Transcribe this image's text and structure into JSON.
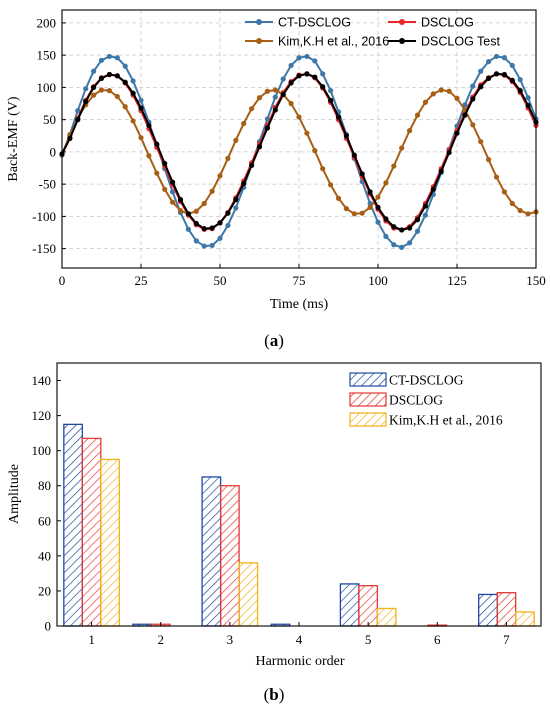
{
  "chart_data": [
    {
      "type": "line",
      "panel_label": "(a)",
      "panel_label_parts": {
        "open": "(",
        "letter": "a",
        "close": ")"
      },
      "xlabel": "Time (ms)",
      "ylabel": "Back-EMF (V)",
      "xlim": [
        0,
        150
      ],
      "ylim": [
        -180,
        220
      ],
      "xticks": [
        "0",
        "25",
        "50",
        "75",
        "100",
        "125",
        "150"
      ],
      "yticks": [
        "-150",
        "-100",
        "-50",
        "0",
        "50",
        "100",
        "150",
        "200"
      ],
      "grid": true,
      "legend_placement": "top (two columns)",
      "x": [
        0,
        2.5,
        5,
        7.5,
        10,
        12.5,
        15,
        17.5,
        20,
        22.5,
        25,
        27.5,
        30,
        32.5,
        35,
        37.5,
        40,
        42.5,
        45,
        47.5,
        50,
        52.5,
        55,
        57.5,
        60,
        62.5,
        65,
        67.5,
        70,
        72.5,
        75,
        77.5,
        80,
        82.5,
        85,
        87.5,
        90,
        92.5,
        95,
        97.5,
        100,
        102.5,
        105,
        107.5,
        110,
        112.5,
        115,
        117.5,
        120,
        122.5,
        125,
        127.5,
        130,
        132.5,
        135,
        137.5,
        140,
        142.5,
        145,
        147.5,
        150
      ],
      "series": [
        {
          "name": "CT-DSCLOG",
          "color": "#3d78a8",
          "values": [
            -5,
            27,
            64,
            98,
            125,
            142,
            148,
            146,
            133,
            110,
            80,
            46,
            10,
            -26,
            -62,
            -94,
            -120,
            -138,
            -146,
            -145,
            -134,
            -114,
            -87,
            -55,
            -20,
            16,
            51,
            85,
            113,
            134,
            146,
            148,
            141,
            121,
            95,
            62,
            27,
            -10,
            -46,
            -80,
            -109,
            -131,
            -144,
            -148,
            -141,
            -123,
            -98,
            -66,
            -32,
            4,
            40,
            73,
            102,
            125,
            140,
            148,
            146,
            134,
            112,
            84,
            51
          ]
        },
        {
          "name": "DSCLOG",
          "color": "#e8262b",
          "values": [
            -4,
            22,
            52,
            80,
            101,
            115,
            120,
            118,
            107,
            88,
            64,
            36,
            7,
            -22,
            -51,
            -77,
            -98,
            -113,
            -120,
            -119,
            -110,
            -94,
            -71,
            -45,
            -17,
            12,
            41,
            69,
            92,
            109,
            119,
            121,
            115,
            99,
            77,
            50,
            21,
            -8,
            -38,
            -65,
            -89,
            -107,
            -118,
            -121,
            -116,
            -102,
            -80,
            -54,
            -26,
            3,
            33,
            61,
            85,
            104,
            115,
            121,
            119,
            109,
            92,
            68,
            41
          ]
        },
        {
          "name": "Kim,K.H et al., 2016",
          "color": "#a65f14",
          "values": [
            -4,
            26,
            52,
            73,
            88,
            96,
            95,
            86,
            70,
            48,
            22,
            -6,
            -33,
            -58,
            -78,
            -91,
            -96,
            -92,
            -80,
            -61,
            -37,
            -10,
            18,
            44,
            67,
            84,
            94,
            96,
            89,
            75,
            54,
            29,
            2,
            -26,
            -51,
            -72,
            -88,
            -96,
            -95,
            -86,
            -70,
            -48,
            -22,
            6,
            33,
            57,
            77,
            90,
            96,
            94,
            83,
            65,
            42,
            16,
            -12,
            -39,
            -62,
            -80,
            -91,
            -96,
            -93
          ]
        },
        {
          "name": "DSCLOG Test",
          "color": "#000000",
          "values": [
            -3,
            21,
            50,
            78,
            100,
            114,
            120,
            118,
            108,
            91,
            68,
            41,
            12,
            -18,
            -47,
            -74,
            -96,
            -111,
            -119,
            -118,
            -110,
            -95,
            -74,
            -49,
            -21,
            8,
            37,
            65,
            89,
            107,
            118,
            121,
            116,
            101,
            80,
            54,
            25,
            -5,
            -34,
            -62,
            -86,
            -104,
            -116,
            -121,
            -118,
            -105,
            -84,
            -58,
            -30,
            -1,
            29,
            57,
            82,
            101,
            114,
            121,
            120,
            111,
            95,
            72,
            46
          ]
        }
      ]
    },
    {
      "type": "bar",
      "panel_label": "(b)",
      "panel_label_parts": {
        "open": "(",
        "letter": "b",
        "close": ")"
      },
      "xlabel": "Harmonic order",
      "ylabel": "Amplitude",
      "ylim": [
        0,
        150
      ],
      "categories": [
        "1",
        "2",
        "3",
        "4",
        "5",
        "6",
        "7"
      ],
      "yticks": [
        "0",
        "20",
        "40",
        "60",
        "80",
        "100",
        "120",
        "140"
      ],
      "grid": false,
      "legend_placement": "top-right",
      "series": [
        {
          "name": "CT-DSCLOG",
          "color": "#2049a0",
          "values": [
            115,
            1,
            85,
            1,
            24,
            0,
            18
          ]
        },
        {
          "name": "DSCLOG",
          "color": "#e43a33",
          "values": [
            107,
            1,
            80,
            0,
            23,
            0.5,
            19
          ]
        },
        {
          "name": "Kim,K.H et al., 2016",
          "color": "#f2b21a",
          "values": [
            95,
            0,
            36,
            0,
            10,
            0,
            8
          ]
        }
      ]
    }
  ]
}
